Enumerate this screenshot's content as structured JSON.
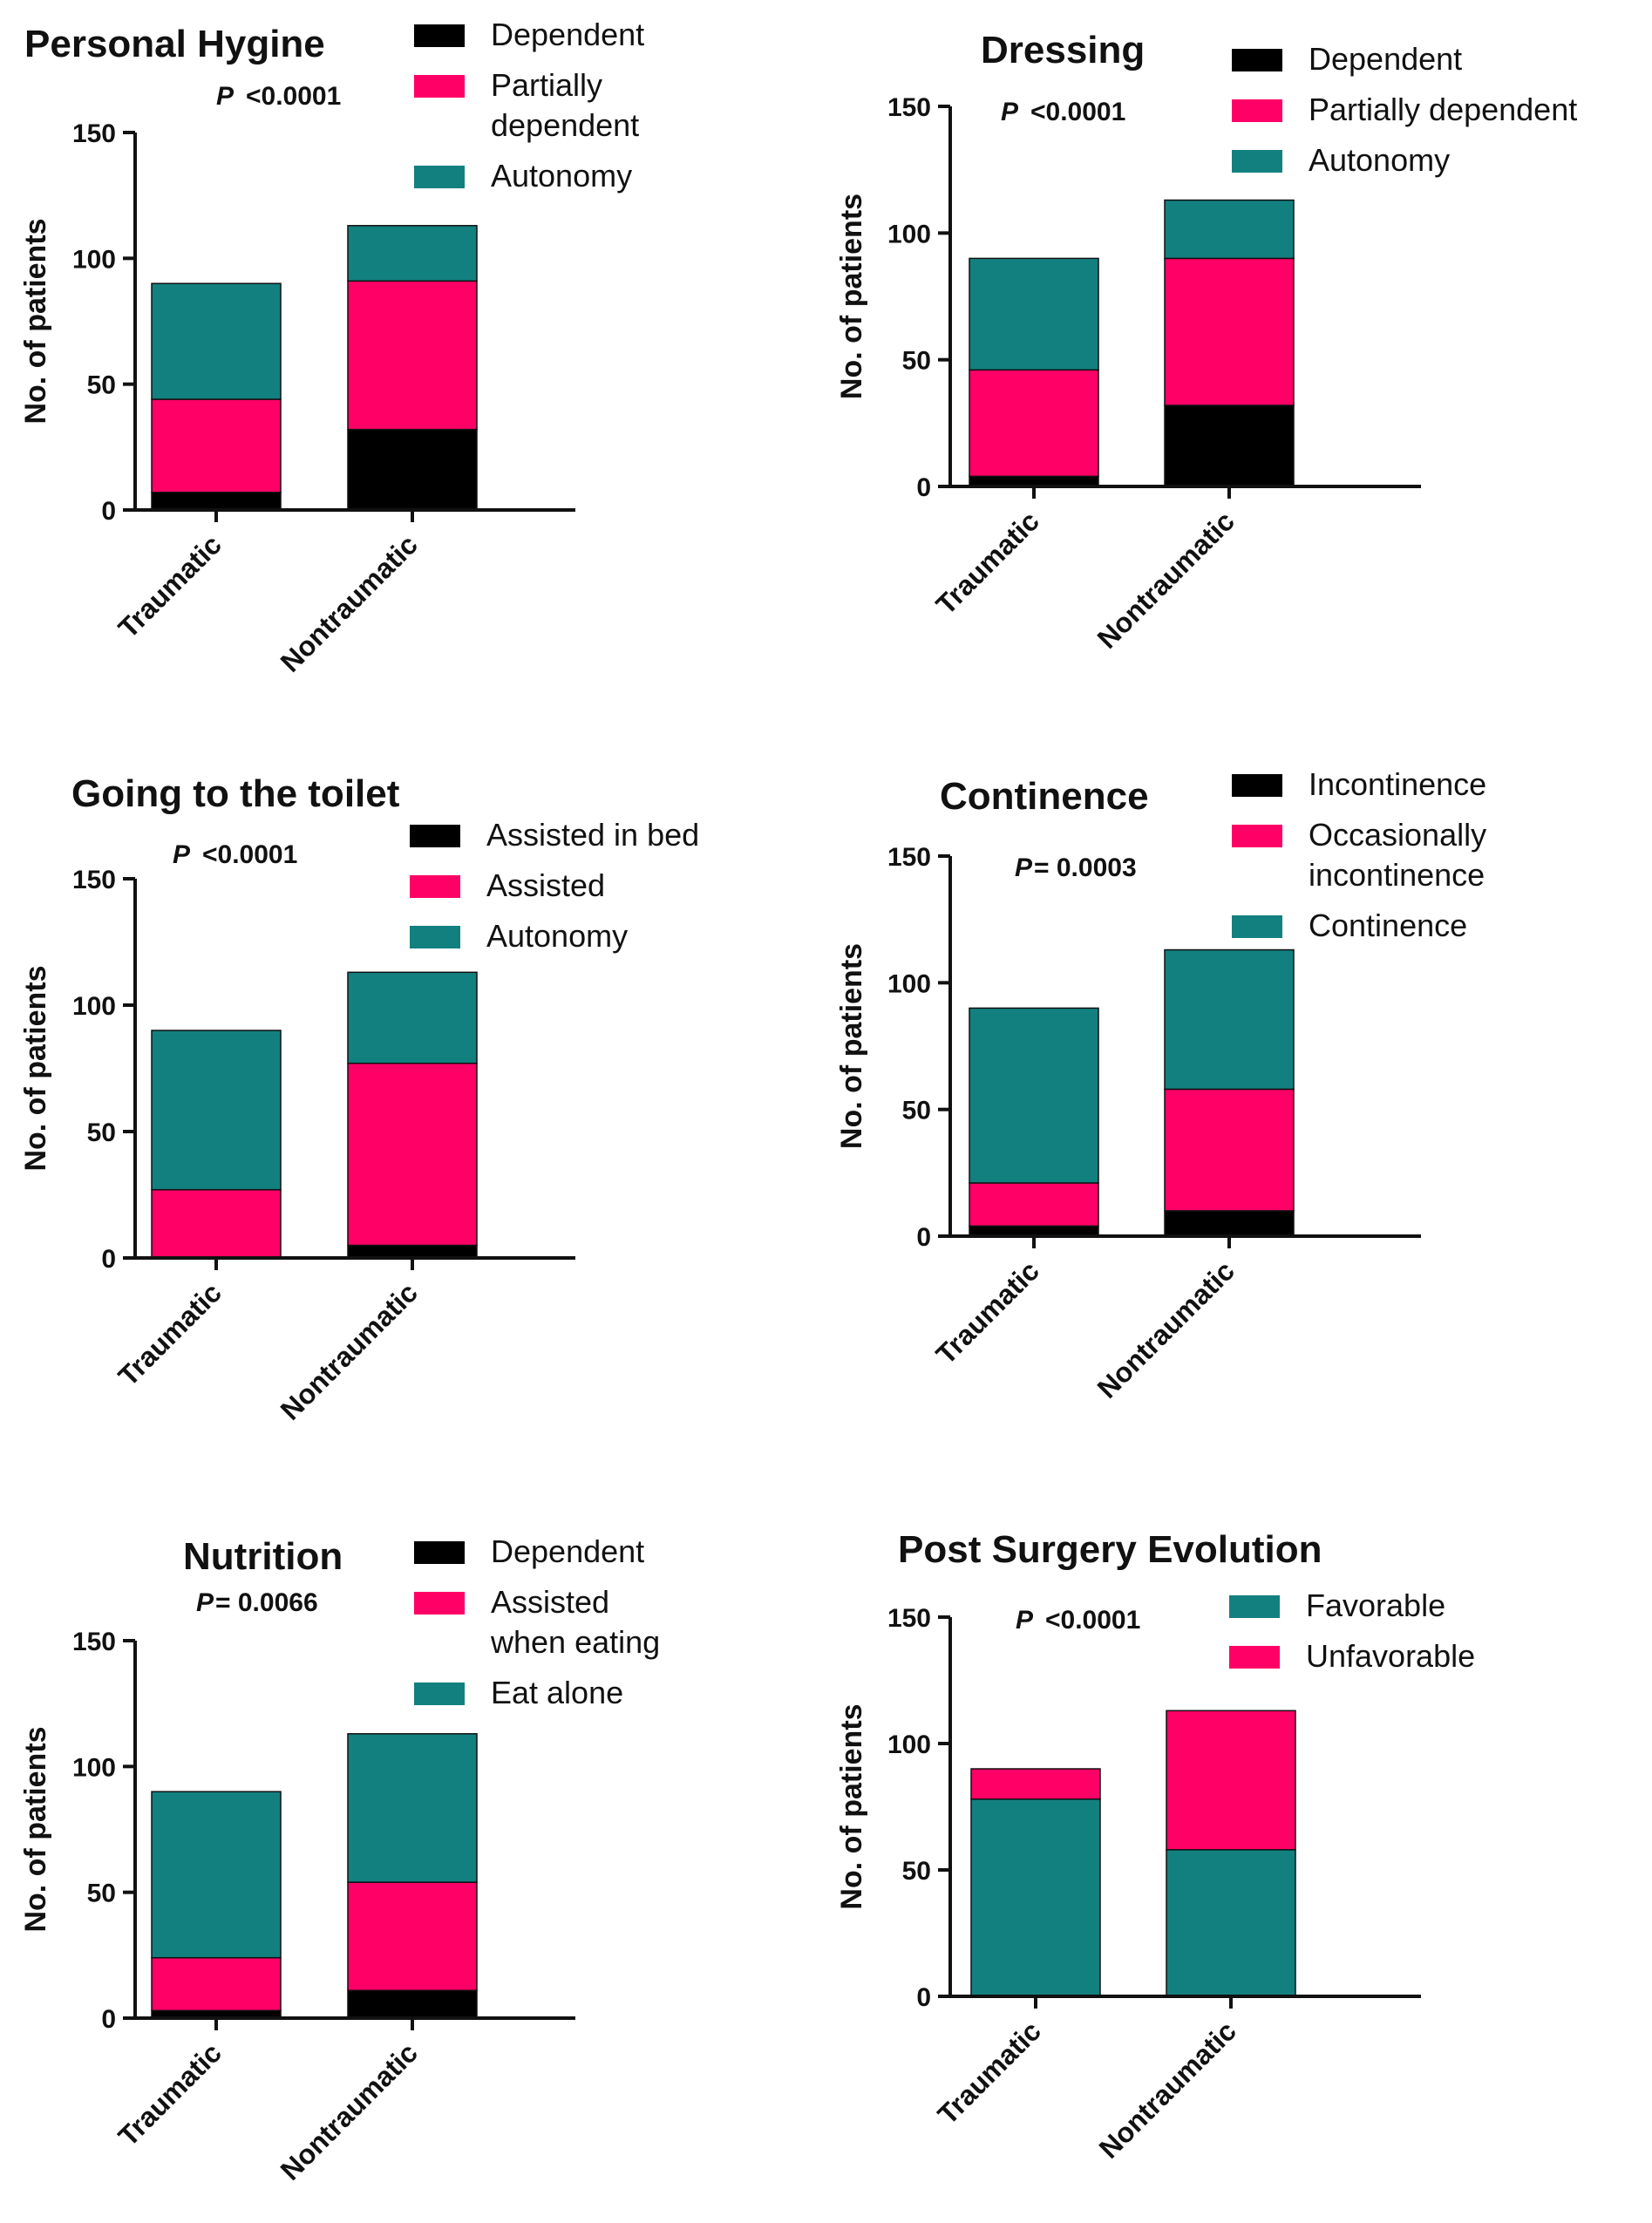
{
  "colors": {
    "black": "#000000",
    "pink": "#ff0066",
    "teal": "#138080"
  },
  "chart_data": [
    {
      "type": "bar",
      "stacked": true,
      "title": "Personal Hygine",
      "p_prefix": "P",
      "p_value": "<0.0001",
      "ylabel": "No. of patients",
      "categories": [
        "Traumatic",
        "Nontraumatic"
      ],
      "yticks": [
        "0",
        "50",
        "100",
        "150"
      ],
      "ylim": [
        0,
        150
      ],
      "series": [
        {
          "name": "Dependent",
          "legend_lines": [
            "Dependent"
          ],
          "color": "#000000",
          "values": [
            7,
            32
          ]
        },
        {
          "name": "Partially dependent",
          "legend_lines": [
            "Partially",
            "dependent"
          ],
          "color": "#ff0066",
          "values": [
            37,
            59
          ]
        },
        {
          "name": "Autonomy",
          "legend_lines": [
            "Autonomy"
          ],
          "color": "#138080",
          "values": [
            46,
            22
          ]
        }
      ]
    },
    {
      "type": "bar",
      "stacked": true,
      "title": "Dressing",
      "p_prefix": "P",
      "p_value": "<0.0001",
      "ylabel": "No. of patients",
      "categories": [
        "Traumatic",
        "Nontraumatic"
      ],
      "yticks": [
        "0",
        "50",
        "100",
        "150"
      ],
      "ylim": [
        0,
        150
      ],
      "series": [
        {
          "name": "Dependent",
          "legend_lines": [
            "Dependent"
          ],
          "color": "#000000",
          "values": [
            4,
            32
          ]
        },
        {
          "name": "Partially dependent",
          "legend_lines": [
            "Partially dependent"
          ],
          "color": "#ff0066",
          "values": [
            42,
            58
          ]
        },
        {
          "name": "Autonomy",
          "legend_lines": [
            "Autonomy"
          ],
          "color": "#138080",
          "values": [
            44,
            23
          ]
        }
      ]
    },
    {
      "type": "bar",
      "stacked": true,
      "title": "Going to the toilet",
      "p_prefix": "P",
      "p_value": "<0.0001",
      "ylabel": "No. of patients",
      "categories": [
        "Traumatic",
        "Nontraumatic"
      ],
      "yticks": [
        "0",
        "50",
        "100",
        "150"
      ],
      "ylim": [
        0,
        150
      ],
      "series": [
        {
          "name": "Assisted in bed",
          "legend_lines": [
            "Assisted in bed"
          ],
          "color": "#000000",
          "values": [
            0,
            5
          ]
        },
        {
          "name": "Assisted",
          "legend_lines": [
            "Assisted"
          ],
          "color": "#ff0066",
          "values": [
            27,
            72
          ]
        },
        {
          "name": "Autonomy",
          "legend_lines": [
            "Autonomy"
          ],
          "color": "#138080",
          "values": [
            63,
            36
          ]
        }
      ]
    },
    {
      "type": "bar",
      "stacked": true,
      "title": "Continence",
      "p_prefix": "P",
      "p_value": "= 0.0003",
      "ylabel": "No. of patients",
      "categories": [
        "Traumatic",
        "Nontraumatic"
      ],
      "yticks": [
        "0",
        "50",
        "100",
        "150"
      ],
      "ylim": [
        0,
        150
      ],
      "series": [
        {
          "name": "Incontinence",
          "legend_lines": [
            "Incontinence"
          ],
          "color": "#000000",
          "values": [
            4,
            10
          ]
        },
        {
          "name": "Occasionally incontinence",
          "legend_lines": [
            "Occasionally",
            "incontinence"
          ],
          "color": "#ff0066",
          "values": [
            17,
            48
          ]
        },
        {
          "name": "Continence",
          "legend_lines": [
            "Continence"
          ],
          "color": "#138080",
          "values": [
            69,
            55
          ]
        }
      ]
    },
    {
      "type": "bar",
      "stacked": true,
      "title": "Nutrition",
      "p_prefix": "P",
      "p_value": "= 0.0066",
      "ylabel": "No. of patients",
      "categories": [
        "Traumatic",
        "Nontraumatic"
      ],
      "yticks": [
        "0",
        "50",
        "100",
        "150"
      ],
      "ylim": [
        0,
        150
      ],
      "series": [
        {
          "name": "Dependent",
          "legend_lines": [
            "Dependent"
          ],
          "color": "#000000",
          "values": [
            3,
            11
          ]
        },
        {
          "name": "Assisted when eating",
          "legend_lines": [
            "Assisted",
            "when eating"
          ],
          "color": "#ff0066",
          "values": [
            21,
            43
          ]
        },
        {
          "name": "Eat alone",
          "legend_lines": [
            "Eat alone"
          ],
          "color": "#138080",
          "values": [
            66,
            59
          ]
        }
      ]
    },
    {
      "type": "bar",
      "stacked": true,
      "title": "Post Surgery Evolution",
      "p_prefix": "P",
      "p_value": "<0.0001",
      "ylabel": "No. of patients",
      "categories": [
        "Traumatic",
        "Nontraumatic"
      ],
      "yticks": [
        "0",
        "50",
        "100",
        "150"
      ],
      "ylim": [
        0,
        150
      ],
      "series": [
        {
          "name": "Favorable",
          "legend_lines": [
            "Favorable"
          ],
          "color": "#138080",
          "values": [
            78,
            58
          ]
        },
        {
          "name": "Unfavorable",
          "legend_lines": [
            "Unfavorable"
          ],
          "color": "#ff0066",
          "values": [
            12,
            55
          ]
        }
      ]
    }
  ]
}
